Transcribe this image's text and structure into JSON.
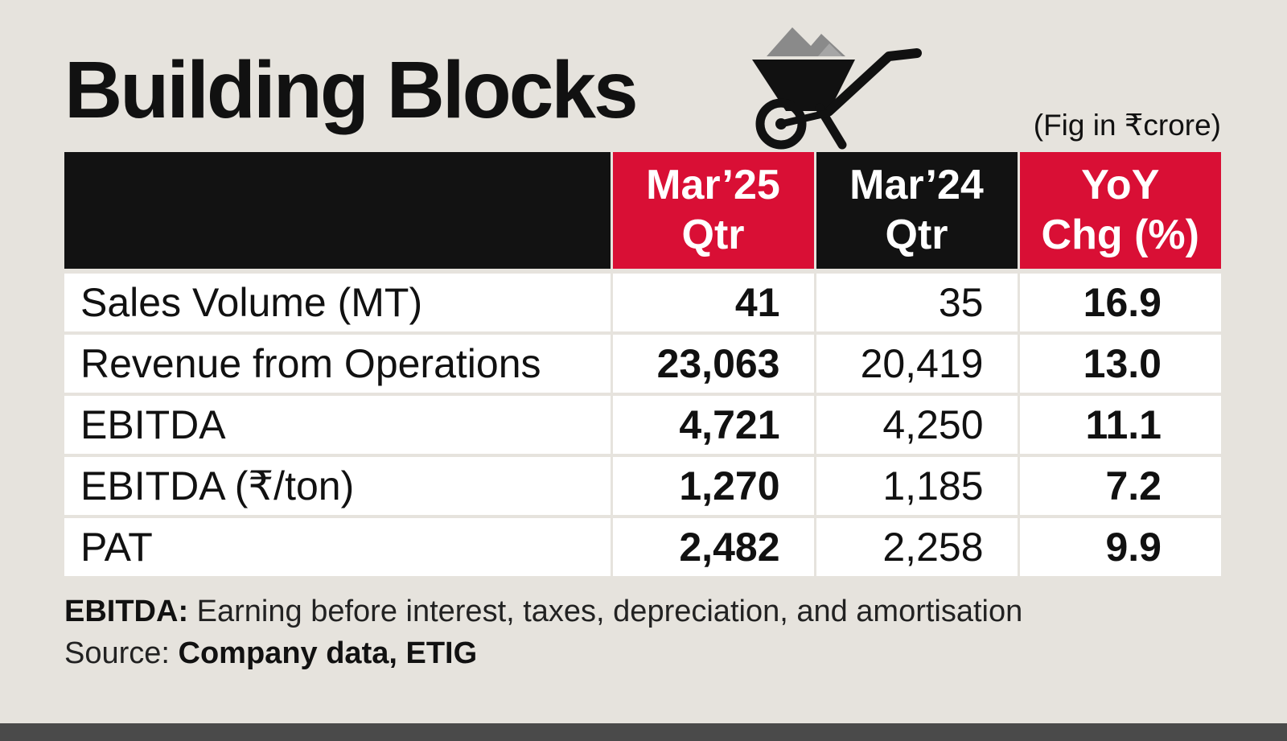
{
  "title": "Building Blocks",
  "unit_note": "(Fig in ₹crore)",
  "header": {
    "col1": [
      "Mar’25",
      "Qtr"
    ],
    "col2": [
      "Mar’24",
      "Qtr"
    ],
    "col3": [
      "YoY",
      "Chg (%)"
    ]
  },
  "colors": {
    "accent_red": "#d90f35",
    "header_black": "#121212",
    "background": "#e6e3dd"
  },
  "icons": {
    "illustration": "wheelbarrow-icon"
  },
  "chart_data": {
    "type": "table",
    "columns": [
      "Mar’25 Qtr",
      "Mar’24 Qtr",
      "YoY Chg (%)"
    ],
    "rows": [
      {
        "label": "Sales Volume (MT)",
        "mar25": "41",
        "mar24": "35",
        "yoy": "16.9"
      },
      {
        "label": "Revenue from Operations",
        "mar25": "23,063",
        "mar24": "20,419",
        "yoy": "13.0"
      },
      {
        "label": "EBITDA",
        "mar25": "4,721",
        "mar24": "4,250",
        "yoy": "11.1"
      },
      {
        "label": "EBITDA (₹/ton)",
        "mar25": "1,270",
        "mar24": "1,185",
        "yoy": "7.2"
      },
      {
        "label": "PAT",
        "mar25": "2,482",
        "mar24": "2,258",
        "yoy": "9.9"
      }
    ]
  },
  "footnote": {
    "term": "EBITDA:",
    "definition": " Earning before interest, taxes, depreciation, and amortisation",
    "source_label": "Source: ",
    "source": "Company data, ETIG"
  }
}
